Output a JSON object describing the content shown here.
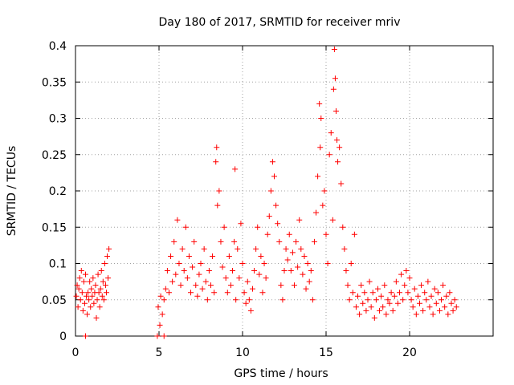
{
  "chart_data": {
    "type": "scatter",
    "title": "Day 180 of 2017, SRMTID for receiver mriv",
    "xlabel": "GPS time / hours",
    "ylabel": "SRMTID / TECUs",
    "xlim": [
      0,
      25
    ],
    "ylim": [
      0,
      0.4
    ],
    "xticks": [
      0,
      5,
      10,
      15,
      20
    ],
    "xtick_labels": [
      "0",
      "5",
      "10",
      "15",
      "20"
    ],
    "yticks": [
      0,
      0.05,
      0.1,
      0.15,
      0.2,
      0.25,
      0.3,
      0.35,
      0.4
    ],
    "ytick_labels": [
      "0",
      "0.05",
      "0.1",
      "0.15",
      "0.2",
      "0.25",
      "0.3",
      "0.35",
      "0.4"
    ],
    "grid": true,
    "marker": "+",
    "color": "#ff0000",
    "series": [
      {
        "name": "SRMTID",
        "points": [
          [
            0.05,
            0.055
          ],
          [
            0.1,
            0.07
          ],
          [
            0.15,
            0.04
          ],
          [
            0.2,
            0.065
          ],
          [
            0.25,
            0.08
          ],
          [
            0.3,
            0.05
          ],
          [
            0.35,
            0.09
          ],
          [
            0.4,
            0.06
          ],
          [
            0.45,
            0.035
          ],
          [
            0.5,
            0.075
          ],
          [
            0.55,
            0.045
          ],
          [
            0.6,
            0.085
          ],
          [
            0.65,
            0.055
          ],
          [
            0.7,
            0.03
          ],
          [
            0.75,
            0.06
          ],
          [
            0.8,
            0.05
          ],
          [
            0.85,
            0.075
          ],
          [
            0.9,
            0.04
          ],
          [
            0.95,
            0.065
          ],
          [
            1.0,
            0.055
          ],
          [
            1.05,
            0.08
          ],
          [
            1.1,
            0.045
          ],
          [
            1.15,
            0.06
          ],
          [
            1.2,
            0.07
          ],
          [
            1.25,
            0.025
          ],
          [
            1.3,
            0.05
          ],
          [
            1.35,
            0.085
          ],
          [
            1.4,
            0.06
          ],
          [
            1.45,
            0.04
          ],
          [
            1.5,
            0.065
          ],
          [
            1.55,
            0.09
          ],
          [
            1.6,
            0.055
          ],
          [
            1.65,
            0.075
          ],
          [
            1.7,
            0.05
          ],
          [
            1.75,
            0.1
          ],
          [
            1.8,
            0.07
          ],
          [
            1.85,
            0.06
          ],
          [
            1.9,
            0.11
          ],
          [
            1.95,
            0.08
          ],
          [
            2.0,
            0.12
          ],
          [
            0.6,
            0.0
          ],
          [
            4.9,
            0.0
          ],
          [
            5.3,
            0.0
          ],
          [
            4.95,
            0.04
          ],
          [
            5.05,
            0.015
          ],
          [
            5.1,
            0.055
          ],
          [
            5.2,
            0.03
          ],
          [
            5.3,
            0.05
          ],
          [
            5.4,
            0.065
          ],
          [
            5.5,
            0.09
          ],
          [
            5.6,
            0.06
          ],
          [
            5.7,
            0.11
          ],
          [
            5.8,
            0.075
          ],
          [
            5.9,
            0.13
          ],
          [
            6.0,
            0.085
          ],
          [
            6.1,
            0.16
          ],
          [
            6.2,
            0.1
          ],
          [
            6.3,
            0.07
          ],
          [
            6.4,
            0.12
          ],
          [
            6.5,
            0.09
          ],
          [
            6.6,
            0.15
          ],
          [
            6.7,
            0.08
          ],
          [
            6.8,
            0.11
          ],
          [
            6.9,
            0.06
          ],
          [
            7.0,
            0.095
          ],
          [
            7.1,
            0.13
          ],
          [
            7.2,
            0.07
          ],
          [
            7.3,
            0.055
          ],
          [
            7.4,
            0.085
          ],
          [
            7.5,
            0.1
          ],
          [
            7.6,
            0.065
          ],
          [
            7.7,
            0.12
          ],
          [
            7.8,
            0.075
          ],
          [
            7.9,
            0.05
          ],
          [
            8.0,
            0.09
          ],
          [
            8.1,
            0.07
          ],
          [
            8.2,
            0.11
          ],
          [
            8.3,
            0.06
          ],
          [
            8.4,
            0.24
          ],
          [
            8.45,
            0.26
          ],
          [
            8.5,
            0.18
          ],
          [
            8.6,
            0.2
          ],
          [
            8.7,
            0.13
          ],
          [
            8.8,
            0.095
          ],
          [
            8.9,
            0.15
          ],
          [
            9.0,
            0.08
          ],
          [
            9.1,
            0.06
          ],
          [
            9.2,
            0.11
          ],
          [
            9.3,
            0.07
          ],
          [
            9.4,
            0.09
          ],
          [
            9.5,
            0.13
          ],
          [
            9.55,
            0.23
          ],
          [
            9.6,
            0.05
          ],
          [
            9.7,
            0.12
          ],
          [
            9.8,
            0.08
          ],
          [
            9.9,
            0.155
          ],
          [
            10.0,
            0.1
          ],
          [
            10.1,
            0.06
          ],
          [
            10.2,
            0.045
          ],
          [
            10.3,
            0.075
          ],
          [
            10.4,
            0.05
          ],
          [
            10.5,
            0.035
          ],
          [
            10.6,
            0.065
          ],
          [
            10.7,
            0.09
          ],
          [
            10.8,
            0.12
          ],
          [
            10.9,
            0.15
          ],
          [
            11.0,
            0.085
          ],
          [
            11.1,
            0.11
          ],
          [
            11.2,
            0.06
          ],
          [
            11.3,
            0.1
          ],
          [
            11.4,
            0.08
          ],
          [
            11.5,
            0.14
          ],
          [
            11.6,
            0.165
          ],
          [
            11.7,
            0.2
          ],
          [
            11.8,
            0.24
          ],
          [
            11.9,
            0.22
          ],
          [
            12.0,
            0.18
          ],
          [
            12.1,
            0.155
          ],
          [
            12.2,
            0.13
          ],
          [
            12.3,
            0.07
          ],
          [
            12.4,
            0.05
          ],
          [
            12.5,
            0.09
          ],
          [
            12.6,
            0.12
          ],
          [
            12.7,
            0.105
          ],
          [
            12.8,
            0.14
          ],
          [
            12.9,
            0.09
          ],
          [
            13.0,
            0.115
          ],
          [
            13.1,
            0.07
          ],
          [
            13.2,
            0.13
          ],
          [
            13.3,
            0.095
          ],
          [
            13.4,
            0.16
          ],
          [
            13.5,
            0.12
          ],
          [
            13.6,
            0.085
          ],
          [
            13.7,
            0.11
          ],
          [
            13.8,
            0.065
          ],
          [
            13.9,
            0.1
          ],
          [
            14.0,
            0.075
          ],
          [
            14.1,
            0.09
          ],
          [
            14.2,
            0.05
          ],
          [
            14.3,
            0.13
          ],
          [
            14.4,
            0.17
          ],
          [
            14.5,
            0.22
          ],
          [
            14.6,
            0.32
          ],
          [
            14.65,
            0.26
          ],
          [
            14.7,
            0.3
          ],
          [
            14.8,
            0.18
          ],
          [
            14.9,
            0.2
          ],
          [
            15.0,
            0.14
          ],
          [
            15.1,
            0.1
          ],
          [
            15.2,
            0.25
          ],
          [
            15.3,
            0.28
          ],
          [
            15.4,
            0.16
          ],
          [
            15.45,
            0.34
          ],
          [
            15.5,
            0.395
          ],
          [
            15.55,
            0.355
          ],
          [
            15.6,
            0.31
          ],
          [
            15.65,
            0.27
          ],
          [
            15.7,
            0.24
          ],
          [
            15.8,
            0.26
          ],
          [
            15.9,
            0.21
          ],
          [
            16.0,
            0.15
          ],
          [
            16.1,
            0.12
          ],
          [
            16.2,
            0.09
          ],
          [
            16.3,
            0.07
          ],
          [
            16.4,
            0.05
          ],
          [
            16.5,
            0.1
          ],
          [
            16.6,
            0.06
          ],
          [
            16.7,
            0.14
          ],
          [
            16.8,
            0.04
          ],
          [
            16.9,
            0.055
          ],
          [
            17.0,
            0.03
          ],
          [
            17.1,
            0.07
          ],
          [
            17.2,
            0.045
          ],
          [
            17.3,
            0.06
          ],
          [
            17.4,
            0.035
          ],
          [
            17.5,
            0.05
          ],
          [
            17.6,
            0.075
          ],
          [
            17.7,
            0.04
          ],
          [
            17.8,
            0.06
          ],
          [
            17.9,
            0.025
          ],
          [
            18.0,
            0.05
          ],
          [
            18.1,
            0.065
          ],
          [
            18.2,
            0.035
          ],
          [
            18.3,
            0.055
          ],
          [
            18.4,
            0.04
          ],
          [
            18.5,
            0.07
          ],
          [
            18.6,
            0.03
          ],
          [
            18.7,
            0.05
          ],
          [
            18.8,
            0.045
          ],
          [
            18.9,
            0.06
          ],
          [
            19.0,
            0.035
          ],
          [
            19.1,
            0.055
          ],
          [
            19.2,
            0.075
          ],
          [
            19.3,
            0.045
          ],
          [
            19.4,
            0.06
          ],
          [
            19.5,
            0.085
          ],
          [
            19.6,
            0.05
          ],
          [
            19.7,
            0.07
          ],
          [
            19.8,
            0.09
          ],
          [
            19.9,
            0.06
          ],
          [
            20.0,
            0.08
          ],
          [
            20.1,
            0.05
          ],
          [
            20.2,
            0.04
          ],
          [
            20.3,
            0.065
          ],
          [
            20.4,
            0.03
          ],
          [
            20.5,
            0.055
          ],
          [
            20.6,
            0.045
          ],
          [
            20.7,
            0.07
          ],
          [
            20.8,
            0.035
          ],
          [
            20.9,
            0.06
          ],
          [
            21.0,
            0.05
          ],
          [
            21.1,
            0.075
          ],
          [
            21.2,
            0.04
          ],
          [
            21.3,
            0.055
          ],
          [
            21.4,
            0.03
          ],
          [
            21.5,
            0.065
          ],
          [
            21.6,
            0.045
          ],
          [
            21.7,
            0.06
          ],
          [
            21.8,
            0.035
          ],
          [
            21.9,
            0.05
          ],
          [
            22.0,
            0.07
          ],
          [
            22.1,
            0.04
          ],
          [
            22.2,
            0.055
          ],
          [
            22.3,
            0.03
          ],
          [
            22.4,
            0.06
          ],
          [
            22.5,
            0.045
          ],
          [
            22.6,
            0.035
          ],
          [
            22.7,
            0.05
          ],
          [
            22.8,
            0.04
          ]
        ]
      }
    ]
  }
}
